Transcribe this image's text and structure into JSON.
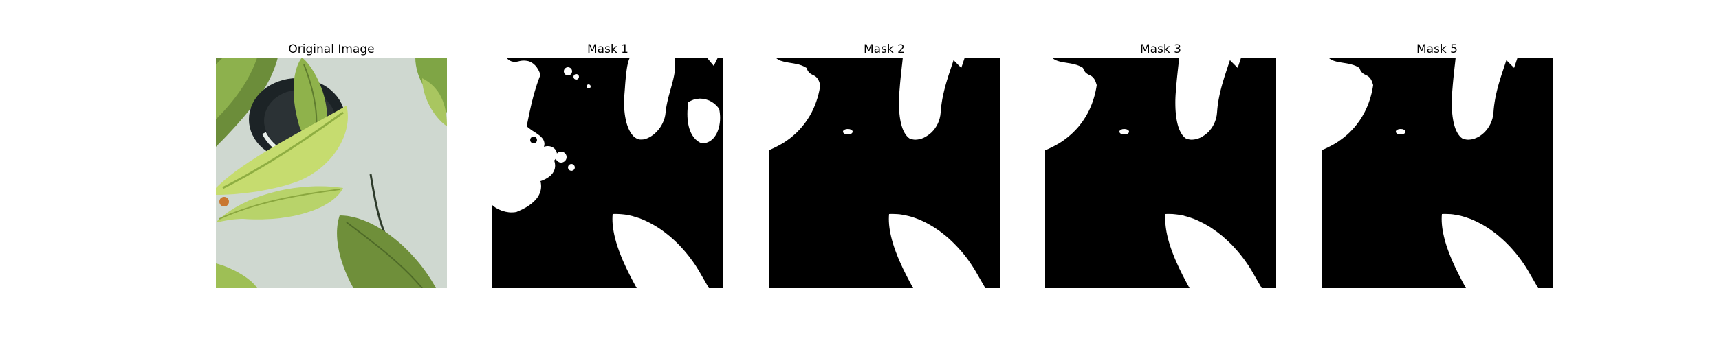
{
  "figure": {
    "panels": [
      {
        "title": "Original Image",
        "kind": "photo"
      },
      {
        "title": "Mask 1",
        "kind": "mask"
      },
      {
        "title": "Mask 2",
        "kind": "mask"
      },
      {
        "title": "Mask 3",
        "kind": "mask"
      },
      {
        "title": "Mask 5",
        "kind": "mask"
      }
    ]
  },
  "colors": {
    "background": "#ffffff",
    "mask_foreground": "#ffffff",
    "mask_background": "#000000",
    "leaf_light": "#b8d36a",
    "leaf_dark": "#6f8f3a",
    "pot": "#1c2326",
    "wall": "#c9d3cd"
  }
}
